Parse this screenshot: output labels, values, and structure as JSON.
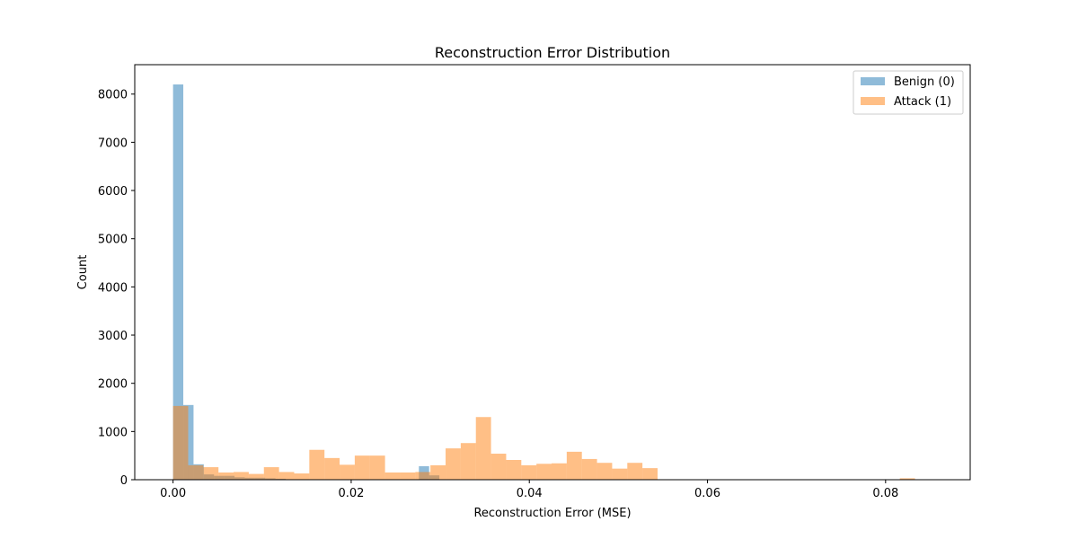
{
  "chart_data": {
    "type": "histogram",
    "title": "Reconstruction Error Distribution",
    "xlabel": "Reconstruction Error (MSE)",
    "ylabel": "Count",
    "xlim": [
      -0.0043,
      0.0895
    ],
    "ylim": [
      0,
      8610
    ],
    "xticks": [
      0.0,
      0.02,
      0.04,
      0.06,
      0.08
    ],
    "xtick_labels": [
      "0.00",
      "0.02",
      "0.04",
      "0.06",
      "0.08"
    ],
    "yticks": [
      0,
      1000,
      2000,
      3000,
      4000,
      5000,
      6000,
      7000,
      8000
    ],
    "ytick_labels": [
      "0",
      "1000",
      "2000",
      "3000",
      "4000",
      "5000",
      "6000",
      "7000",
      "8000"
    ],
    "grid": false,
    "legend_position": "top-right",
    "series": [
      {
        "name": "Benign (0)",
        "color": "#1f77b4",
        "opacity": 0.5,
        "bin_width": 0.00115,
        "bin_starts": [
          0.0,
          0.00115,
          0.0023,
          0.00345,
          0.0046,
          0.00575,
          0.0069,
          0.00805,
          0.0092,
          0.01035,
          0.0115,
          0.0276,
          0.02875
        ],
        "counts": [
          8200,
          1550,
          320,
          110,
          80,
          80,
          50,
          40,
          40,
          30,
          20,
          280,
          90
        ]
      },
      {
        "name": "Attack (1)",
        "color": "#ff7f0e",
        "opacity": 0.5,
        "bin_width": 0.0017,
        "bin_starts": [
          0.0,
          0.0017,
          0.0034,
          0.0051,
          0.0068,
          0.0085,
          0.0102,
          0.0119,
          0.0136,
          0.0153,
          0.017,
          0.0187,
          0.0204,
          0.0221,
          0.0238,
          0.0255,
          0.0272,
          0.0289,
          0.0306,
          0.0323,
          0.034,
          0.0357,
          0.0374,
          0.0391,
          0.0408,
          0.0425,
          0.0442,
          0.0459,
          0.0476,
          0.0493,
          0.051,
          0.0527,
          0.0816
        ],
        "counts": [
          1530,
          300,
          260,
          150,
          160,
          120,
          260,
          160,
          130,
          620,
          450,
          310,
          500,
          500,
          150,
          150,
          160,
          300,
          650,
          760,
          1300,
          540,
          410,
          300,
          330,
          340,
          580,
          430,
          350,
          230,
          350,
          240,
          30
        ]
      }
    ]
  }
}
